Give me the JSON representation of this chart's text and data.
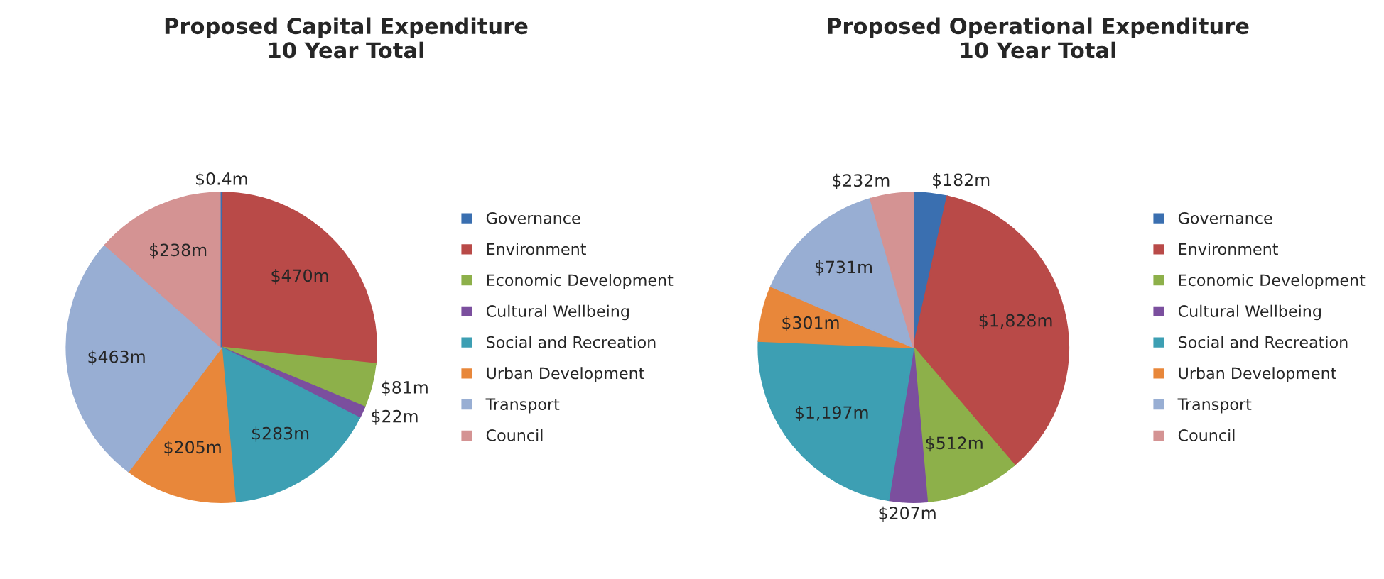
{
  "chart_data": [
    {
      "type": "pie",
      "title": "Proposed Capital Expenditure\n10 Year Total",
      "categories": [
        "Governance",
        "Environment",
        "Economic Development",
        "Cultural Wellbeing",
        "Social and Recreation",
        "Urban Development",
        "Transport",
        "Council"
      ],
      "values": [
        0.4,
        470,
        81,
        22,
        283,
        205,
        463,
        238
      ],
      "value_labels": [
        "$0.4m",
        "$470m",
        "$81m",
        "$22m",
        "$283m",
        "$205m",
        "$463m",
        "$238m"
      ],
      "colors": [
        "#3a6fb0",
        "#b94a48",
        "#8db04a",
        "#7b4f9e",
        "#3d9fb3",
        "#e8873a",
        "#98aed3",
        "#d49393"
      ],
      "legend": "right"
    },
    {
      "type": "pie",
      "title": "Proposed Operational Expenditure\n10 Year Total",
      "categories": [
        "Governance",
        "Environment",
        "Economic Development",
        "Cultural Wellbeing",
        "Social and Recreation",
        "Urban Development",
        "Transport",
        "Council"
      ],
      "values": [
        182,
        1828,
        512,
        207,
        1197,
        301,
        731,
        232
      ],
      "value_labels": [
        "$182m",
        "$1,828m",
        "$512m",
        "$207m",
        "$1,197m",
        "$301m",
        "$731m",
        "$232m"
      ],
      "colors": [
        "#3a6fb0",
        "#b94a48",
        "#8db04a",
        "#7b4f9e",
        "#3d9fb3",
        "#e8873a",
        "#98aed3",
        "#d49393"
      ],
      "legend": "right"
    }
  ]
}
